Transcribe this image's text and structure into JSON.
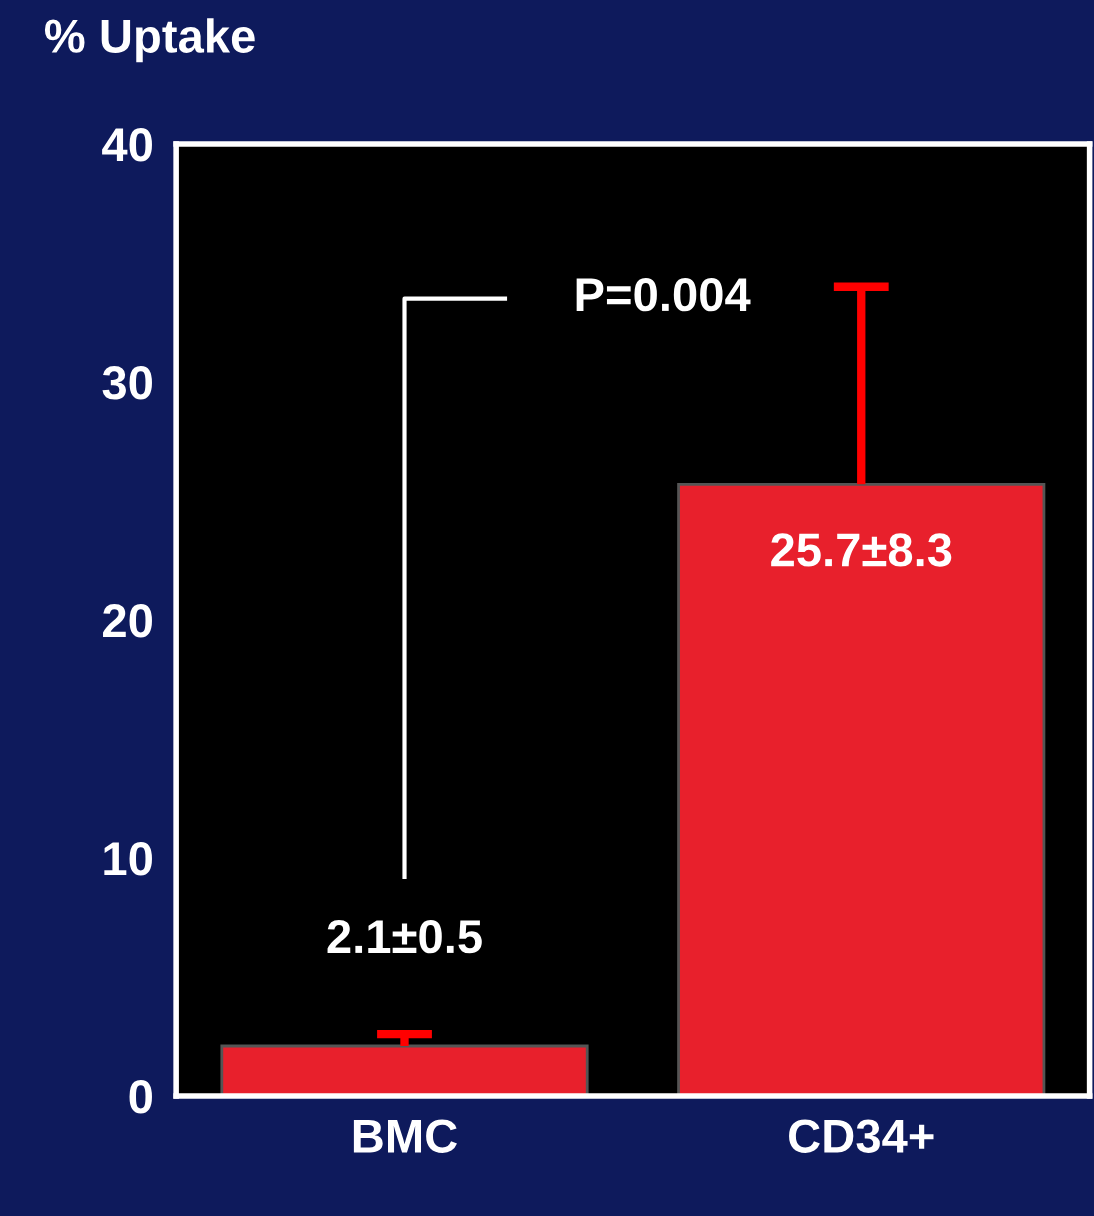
{
  "chart_data": {
    "type": "bar",
    "ylabel": "% Uptake",
    "categories": [
      "BMC",
      "CD34+"
    ],
    "values": [
      2.1,
      25.7
    ],
    "errors": [
      [
        2.1,
        2.6
      ],
      [
        25.7,
        34.0
      ]
    ],
    "value_labels": [
      "2.1±0.5",
      "25.7±8.3"
    ],
    "color": "#e8202c",
    "ylim": [
      0,
      40
    ],
    "yticks": [
      0,
      10,
      20,
      30,
      40
    ],
    "grid": false,
    "annotations": [
      "P=0.004"
    ]
  }
}
